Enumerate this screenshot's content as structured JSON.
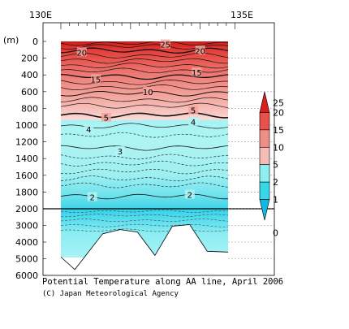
{
  "chart_data": {
    "type": "contour-section",
    "title": "Potential Temperature along AA line, April 2006",
    "credit": "(C) Japan Meteorological Agency",
    "x_ticks": [
      "130E",
      "135E"
    ],
    "y_unit": "(m)",
    "y_ticks_upper": [
      "0",
      "200",
      "400",
      "600",
      "800",
      "1000",
      "1200",
      "1400",
      "1600",
      "1800",
      "2000"
    ],
    "y_ticks_lower": [
      "3000",
      "4000",
      "5000",
      "6000"
    ],
    "y_upper_range": [
      0,
      2000
    ],
    "y_lower_range": [
      2000,
      6000
    ],
    "colorbar": {
      "labels": [
        "25",
        "20",
        "15",
        "10",
        "5",
        "2",
        "1",
        "0"
      ],
      "colors": [
        "#d8201e",
        "#e8514c",
        "#ef8e86",
        "#f5bdb7",
        "#8ef0f0",
        "#36d8e8",
        "#12b8e6"
      ]
    },
    "contour_labels": [
      {
        "value": "25",
        "x": 132.9,
        "depth": 35
      },
      {
        "value": "20",
        "x": 130.5,
        "depth": 130
      },
      {
        "value": "20",
        "x": 133.9,
        "depth": 110
      },
      {
        "value": "15",
        "x": 130.9,
        "depth": 450
      },
      {
        "value": "15",
        "x": 133.8,
        "depth": 370
      },
      {
        "value": "10",
        "x": 132.4,
        "depth": 600
      },
      {
        "value": "5",
        "x": 131.2,
        "depth": 910
      },
      {
        "value": "5",
        "x": 133.7,
        "depth": 820
      },
      {
        "value": "4",
        "x": 130.7,
        "depth": 1050
      },
      {
        "value": "4",
        "x": 133.7,
        "depth": 960
      },
      {
        "value": "3",
        "x": 131.6,
        "depth": 1310
      },
      {
        "value": "2",
        "x": 130.8,
        "depth": 1860
      },
      {
        "value": "2",
        "x": 133.6,
        "depth": 1830
      }
    ],
    "bottom_profile": [
      {
        "x": 129.9,
        "depth": 4900
      },
      {
        "x": 130.3,
        "depth": 5650
      },
      {
        "x": 131.1,
        "depth": 3500
      },
      {
        "x": 131.6,
        "depth": 3250
      },
      {
        "x": 132.1,
        "depth": 3400
      },
      {
        "x": 132.6,
        "depth": 4800
      },
      {
        "x": 133.1,
        "depth": 3050
      },
      {
        "x": 133.6,
        "depth": 2950
      },
      {
        "x": 134.1,
        "depth": 4550
      },
      {
        "x": 134.7,
        "depth": 4600
      }
    ]
  }
}
